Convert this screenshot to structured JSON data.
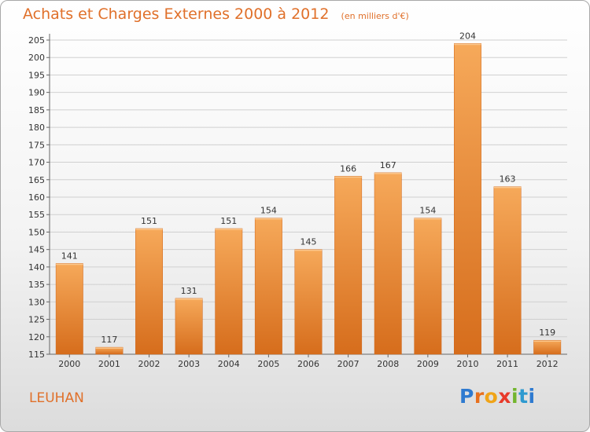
{
  "title": "Achats et Charges Externes 2000 à 2012",
  "subtitle": "(en milliers d'€)",
  "place_name": "LEUHAN",
  "logo": "Proxiti",
  "colors": {
    "accent": "#e0702a",
    "bar_light": "#f6a95a",
    "bar_dark": "#d66d1c",
    "grid": "#d0d0d0"
  },
  "chart_data": {
    "type": "bar",
    "title": "Achats et Charges Externes 2000 à 2012",
    "subtitle": "(en milliers d'€)",
    "categories": [
      "2000",
      "2001",
      "2002",
      "2003",
      "2004",
      "2005",
      "2006",
      "2007",
      "2008",
      "2009",
      "2010",
      "2011",
      "2012"
    ],
    "values": [
      141,
      117,
      151,
      131,
      151,
      154,
      145,
      166,
      167,
      154,
      204,
      163,
      119
    ],
    "ylim": [
      115,
      205
    ],
    "yticks": [
      115,
      120,
      125,
      130,
      135,
      140,
      145,
      150,
      155,
      160,
      165,
      170,
      175,
      180,
      185,
      190,
      195,
      200,
      205
    ],
    "grid": true,
    "xlabel": "",
    "ylabel": ""
  }
}
